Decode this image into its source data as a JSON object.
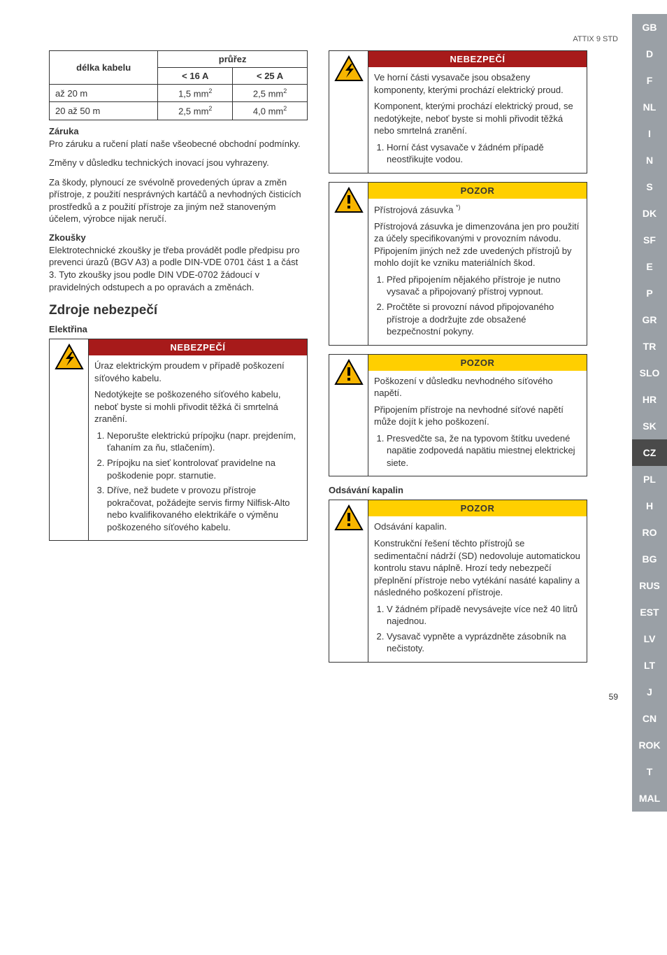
{
  "header": {
    "product": "ATTIX 9 STD",
    "pageNumber": "59"
  },
  "sidebar": {
    "tabs": [
      "GB",
      "D",
      "F",
      "NL",
      "I",
      "N",
      "S",
      "DK",
      "SF",
      "E",
      "P",
      "GR",
      "TR",
      "SLO",
      "HR",
      "SK",
      "CZ",
      "PL",
      "H",
      "RO",
      "BG",
      "RUS",
      "EST",
      "LV",
      "LT",
      "J",
      "CN",
      "ROK",
      "T",
      "MAL"
    ],
    "activeIndex": 16
  },
  "table": {
    "h1": "délka kabelu",
    "h2": "průřez",
    "sub1": "< 16 A",
    "sub2": "< 25 A",
    "r1c1": "až 20 m",
    "r1c2": "1,5 mm",
    "r1c3": "2,5 mm",
    "r2c1": "20 až 50 m",
    "r2c2": "2,5 mm",
    "r2c3": "4,0 mm",
    "sq": "2"
  },
  "left": {
    "zaruka_h": "Záruka",
    "zaruka_p1": "Pro záruku a ručení platí naše všeobecné obchodní podmínky.",
    "zaruka_p2": "Změny v důsledku technických inovací jsou vyhrazeny.",
    "zaruka_p3": "Za škody, plynoucí ze svévolně provedených úprav a změn přístroje, z použití nesprávných kartáčů a nevhodných čisticích prostředků a z použití přístroje za jiným než stanoveným účelem, výrobce nijak neručí.",
    "zkousky_h": "Zkoušky",
    "zkousky_p": "Elektrotechnické zkoušky je třeba provádět podle předpisu pro prevenci úrazů (BGV A3) a podle DIN-VDE 0701 část 1 a část 3. Tyto zkoušky jsou podle DIN VDE-0702 žádoucí v pravidelných odstupech a po opravách a změnách.",
    "zdroje_h": "Zdroje nebezpečí",
    "elektrina_h": "Elektřina"
  },
  "warn_left": {
    "title": "NEBEZPEČÍ",
    "p1": "Úraz elektrickým proudem v případě poškození síťového kabelu.",
    "p2": "Nedotýkejte se poškozeného síťového kabelu, neboť byste si mohli přivodit těžká či smrtelná zranění.",
    "li1": "Neporušte elektrickú prípojku (napr. prejdením, ťahaním za ňu, stlačením).",
    "li2": "Prípojku na sieť kontrolovať pravidelne na poškodenie popr. starnutie.",
    "li3": "Dříve, než budete v provozu přístroje pokračovat, požádejte servis firmy Nilfisk-Alto nebo kvalifikovaného elektrikáře o výměnu poškozeného síťového kabelu."
  },
  "warn_r1": {
    "title": "NEBEZPEČÍ",
    "p1": "Ve horní části vysavače jsou obsaženy komponenty, kterými prochází elektrický proud.",
    "p2": "Komponent, kterými prochází elektrický proud, se nedotýkejte, neboť byste si mohli přivodit těžká nebo smrtelná zranění.",
    "li1": "Horní část vysavače v žádném případě neostřikujte vodou."
  },
  "warn_r2": {
    "title": "POZOR",
    "lead": "Přístrojová zásuvka ",
    "foot": "*)",
    "p1": "Přístrojová zásuvka je dimenzována jen pro použití za účely specifikovanými v provozním návodu. Připojením jiných než zde uvedených přístrojů by mohlo dojít ke vzniku materiálních škod.",
    "li1": "Před připojením nějakého přístroje je nutno vysavač a připojovaný přístroj vypnout.",
    "li2": "Pročtěte si provozní návod připojovaného přístroje a dodržujte zde obsažené bezpečnostní pokyny."
  },
  "warn_r3": {
    "title": "POZOR",
    "p1": "Poškození v důsledku nevhodného síťového napětí.",
    "p2": "Připojením přístroje na nevhodné síťové napětí může dojít k jeho poškození.",
    "li1": "Presvedčte sa, že na typovom štítku uvedené napätie zodpovedá napätiu miestnej elektrickej siete."
  },
  "odsavani_h": "Odsávání kapalin",
  "warn_r4": {
    "title": "POZOR",
    "p1": "Odsávání kapalin.",
    "p2": "Konstrukční řešení těchto přístrojů se sedimentační nádrží (SD) nedovoluje automatickou kontrolu stavu náplně. Hrozí tedy nebezpečí přeplnění přístroje nebo vytékání nasáté kapaliny a následného poškození přístroje.",
    "li1": "V žádném případě nevysávejte více než 40 litrů najednou.",
    "li2": "Vysavač vypněte a vyprázdněte zásobník na nečistoty."
  },
  "icons": {
    "bolt_color": "#f7b500",
    "bolt_stroke": "#000",
    "excl_fill": "#f7b500",
    "excl_stroke": "#000"
  }
}
